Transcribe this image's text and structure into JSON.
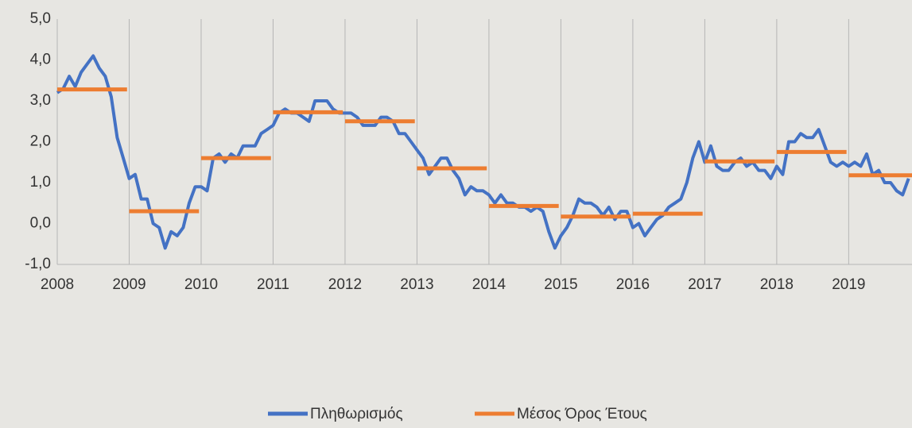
{
  "chart_data": {
    "type": "line",
    "xlim": [
      2008,
      2019.88
    ],
    "xticks": [
      2008,
      2009,
      2010,
      2011,
      2012,
      2013,
      2014,
      2015,
      2016,
      2017,
      2018,
      2019
    ],
    "ylim": [
      -1,
      5
    ],
    "yticks": [
      {
        "value": -1,
        "label": "-1,0"
      },
      {
        "value": 0,
        "label": "0,0"
      },
      {
        "value": 1,
        "label": "1,0"
      },
      {
        "value": 2,
        "label": "2,0"
      },
      {
        "value": 3,
        "label": "3,0"
      },
      {
        "value": 4,
        "label": "4,0"
      },
      {
        "value": 5,
        "label": "5,0"
      }
    ],
    "grid": true,
    "legend": "bottom",
    "series": [
      {
        "name": "Πληθωρισμός",
        "color": "#4472c4",
        "x": [
          2008,
          2008.083,
          2008.167,
          2008.25,
          2008.333,
          2008.417,
          2008.5,
          2008.583,
          2008.667,
          2008.75,
          2008.833,
          2008.917,
          2009,
          2009.083,
          2009.167,
          2009.25,
          2009.333,
          2009.417,
          2009.5,
          2009.583,
          2009.667,
          2009.75,
          2009.833,
          2009.917,
          2010,
          2010.083,
          2010.167,
          2010.25,
          2010.333,
          2010.417,
          2010.5,
          2010.583,
          2010.667,
          2010.75,
          2010.833,
          2010.917,
          2011,
          2011.083,
          2011.167,
          2011.25,
          2011.333,
          2011.417,
          2011.5,
          2011.583,
          2011.667,
          2011.75,
          2011.833,
          2011.917,
          2012,
          2012.083,
          2012.167,
          2012.25,
          2012.333,
          2012.417,
          2012.5,
          2012.583,
          2012.667,
          2012.75,
          2012.833,
          2012.917,
          2013,
          2013.083,
          2013.167,
          2013.25,
          2013.333,
          2013.417,
          2013.5,
          2013.583,
          2013.667,
          2013.75,
          2013.833,
          2013.917,
          2014,
          2014.083,
          2014.167,
          2014.25,
          2014.333,
          2014.417,
          2014.5,
          2014.583,
          2014.667,
          2014.75,
          2014.833,
          2014.917,
          2015,
          2015.083,
          2015.167,
          2015.25,
          2015.333,
          2015.417,
          2015.5,
          2015.583,
          2015.667,
          2015.75,
          2015.833,
          2015.917,
          2016,
          2016.083,
          2016.167,
          2016.25,
          2016.333,
          2016.417,
          2016.5,
          2016.583,
          2016.667,
          2016.75,
          2016.833,
          2016.917,
          2017,
          2017.083,
          2017.167,
          2017.25,
          2017.333,
          2017.417,
          2017.5,
          2017.583,
          2017.667,
          2017.75,
          2017.833,
          2017.917,
          2018,
          2018.083,
          2018.167,
          2018.25,
          2018.333,
          2018.417,
          2018.5,
          2018.583,
          2018.667,
          2018.75,
          2018.833,
          2018.917,
          2019,
          2019.083,
          2019.167,
          2019.25,
          2019.333,
          2019.417,
          2019.5,
          2019.583,
          2019.667,
          2019.75,
          2019.833
        ],
        "values": [
          3.2,
          3.3,
          3.6,
          3.35,
          3.7,
          3.9,
          4.1,
          3.8,
          3.6,
          3.1,
          2.1,
          1.6,
          1.1,
          1.2,
          0.6,
          0.6,
          0.0,
          -0.1,
          -0.6,
          -0.2,
          -0.3,
          -0.1,
          0.5,
          0.9,
          0.9,
          0.8,
          1.6,
          1.7,
          1.5,
          1.7,
          1.6,
          1.9,
          1.9,
          1.9,
          2.2,
          2.3,
          2.4,
          2.7,
          2.8,
          2.7,
          2.7,
          2.6,
          2.5,
          3.0,
          3.0,
          3.0,
          2.8,
          2.7,
          2.7,
          2.7,
          2.6,
          2.4,
          2.4,
          2.4,
          2.6,
          2.6,
          2.5,
          2.2,
          2.2,
          2.0,
          1.8,
          1.6,
          1.2,
          1.4,
          1.6,
          1.6,
          1.3,
          1.1,
          0.7,
          0.9,
          0.8,
          0.8,
          0.7,
          0.5,
          0.7,
          0.5,
          0.5,
          0.4,
          0.4,
          0.3,
          0.4,
          0.3,
          -0.2,
          -0.6,
          -0.3,
          -0.1,
          0.2,
          0.6,
          0.5,
          0.5,
          0.4,
          0.2,
          0.4,
          0.1,
          0.3,
          0.3,
          -0.1,
          0.0,
          -0.3,
          -0.1,
          0.1,
          0.2,
          0.4,
          0.5,
          0.6,
          1.0,
          1.6,
          2.0,
          1.5,
          1.9,
          1.4,
          1.3,
          1.3,
          1.5,
          1.6,
          1.4,
          1.5,
          1.3,
          1.3,
          1.1,
          1.4,
          1.2,
          2.0,
          2.0,
          2.2,
          2.1,
          2.1,
          2.3,
          1.9,
          1.5,
          1.4,
          1.5,
          1.4,
          1.5,
          1.4,
          1.7,
          1.2,
          1.3,
          1.0,
          1.0,
          0.8,
          0.7,
          1.1
        ]
      },
      {
        "name": "Μέσος Όρος Έτους",
        "color": "#ed7d31",
        "style": "yearly",
        "x": [
          2008,
          2009,
          2010,
          2011,
          2012,
          2013,
          2014,
          2015,
          2016,
          2017,
          2018,
          2019
        ],
        "values": [
          3.28,
          0.3,
          1.6,
          2.72,
          2.5,
          1.35,
          0.43,
          0.17,
          0.24,
          1.52,
          1.75,
          1.18
        ]
      }
    ]
  }
}
